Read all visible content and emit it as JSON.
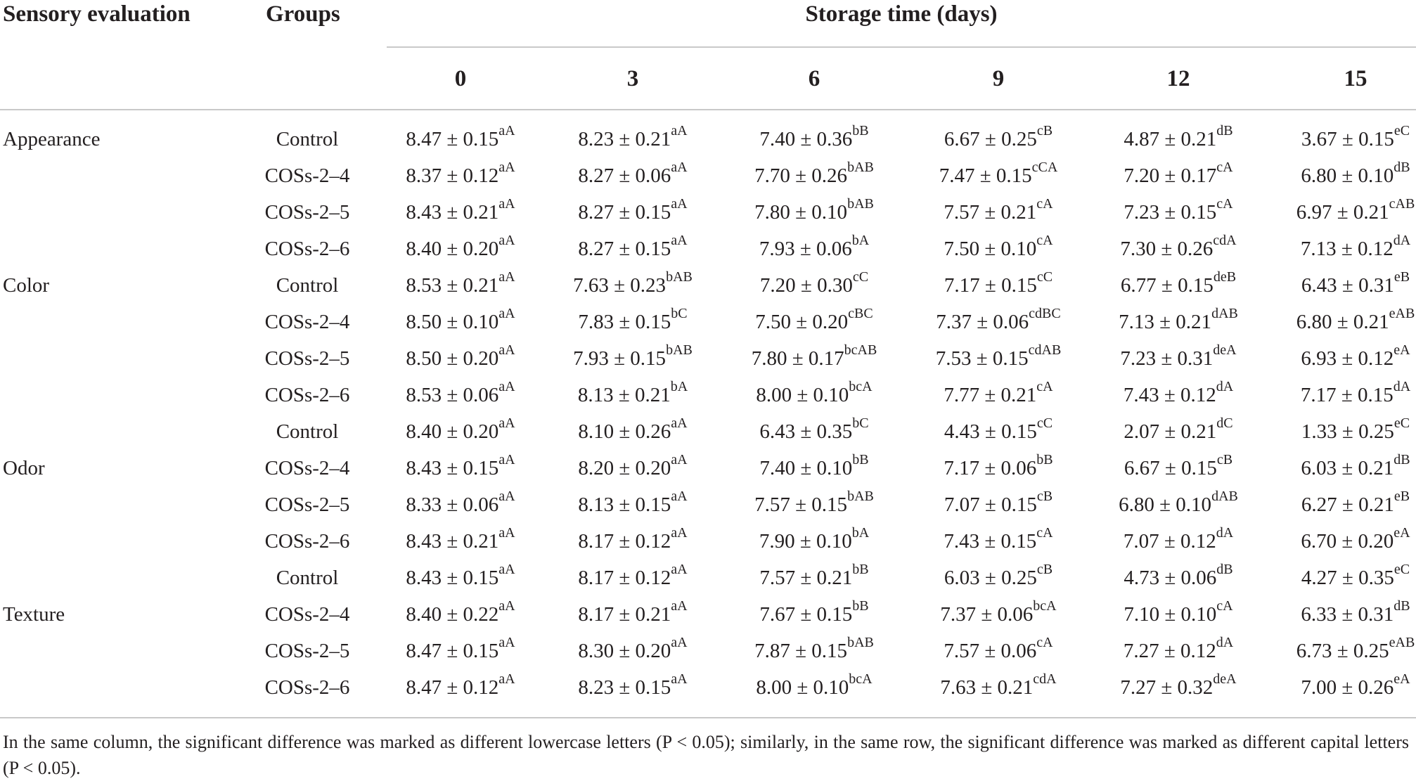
{
  "header": {
    "sensory": "Sensory evaluation",
    "groups": "Groups",
    "storage": "Storage time (days)",
    "days": [
      "0",
      "3",
      "6",
      "9",
      "12",
      "15"
    ]
  },
  "rows": [
    {
      "cat": "Appearance",
      "group": "Control",
      "cells": [
        [
          "8.47 ± 0.15",
          "aA"
        ],
        [
          "8.23 ± 0.21",
          "aA"
        ],
        [
          "7.40 ± 0.36",
          "bB"
        ],
        [
          "6.67 ± 0.25",
          "cB"
        ],
        [
          "4.87 ± 0.21",
          "dB"
        ],
        [
          "3.67 ± 0.15",
          "eC"
        ]
      ]
    },
    {
      "cat": "",
      "group": "COSs-2–4",
      "cells": [
        [
          "8.37 ± 0.12",
          "aA"
        ],
        [
          "8.27 ± 0.06",
          "aA"
        ],
        [
          "7.70 ± 0.26",
          "bAB"
        ],
        [
          "7.47 ± 0.15",
          "cCA"
        ],
        [
          "7.20 ± 0.17",
          "cA"
        ],
        [
          "6.80 ± 0.10",
          "dB"
        ]
      ]
    },
    {
      "cat": "",
      "group": "COSs-2–5",
      "cells": [
        [
          "8.43 ± 0.21",
          "aA"
        ],
        [
          "8.27 ± 0.15",
          "aA"
        ],
        [
          "7.80 ± 0.10",
          "bAB"
        ],
        [
          "7.57 ± 0.21",
          "cA"
        ],
        [
          "7.23 ± 0.15",
          "cA"
        ],
        [
          "6.97 ± 0.21",
          "cAB"
        ]
      ]
    },
    {
      "cat": "",
      "group": "COSs-2–6",
      "cells": [
        [
          "8.40 ± 0.20",
          "aA"
        ],
        [
          "8.27 ± 0.15",
          "aA"
        ],
        [
          "7.93 ± 0.06",
          "bA"
        ],
        [
          "7.50 ± 0.10",
          "cA"
        ],
        [
          "7.30 ± 0.26",
          "cdA"
        ],
        [
          "7.13 ± 0.12",
          "dA"
        ]
      ]
    },
    {
      "cat": "Color",
      "group": "Control",
      "cells": [
        [
          "8.53 ± 0.21",
          "aA"
        ],
        [
          "7.63 ± 0.23",
          "bAB"
        ],
        [
          "7.20 ± 0.30",
          "cC"
        ],
        [
          "7.17 ± 0.15",
          "cC"
        ],
        [
          "6.77 ± 0.15",
          "deB"
        ],
        [
          "6.43 ± 0.31",
          "eB"
        ]
      ]
    },
    {
      "cat": "",
      "group": "COSs-2–4",
      "cells": [
        [
          "8.50 ± 0.10",
          "aA"
        ],
        [
          "7.83 ± 0.15",
          "bC"
        ],
        [
          "7.50 ± 0.20",
          "cBC"
        ],
        [
          "7.37 ± 0.06",
          "cdBC"
        ],
        [
          "7.13 ± 0.21",
          "dAB"
        ],
        [
          "6.80 ± 0.21",
          "eAB"
        ]
      ]
    },
    {
      "cat": "",
      "group": "COSs-2–5",
      "cells": [
        [
          "8.50 ± 0.20",
          "aA"
        ],
        [
          "7.93 ± 0.15",
          "bAB"
        ],
        [
          "7.80 ± 0.17",
          "bcAB"
        ],
        [
          "7.53 ± 0.15",
          "cdAB"
        ],
        [
          "7.23 ± 0.31",
          "deA"
        ],
        [
          "6.93 ± 0.12",
          "eA"
        ]
      ]
    },
    {
      "cat": "",
      "group": "COSs-2–6",
      "cells": [
        [
          "8.53 ± 0.06",
          "aA"
        ],
        [
          "8.13 ± 0.21",
          "bA"
        ],
        [
          "8.00 ± 0.10",
          "bcA"
        ],
        [
          "7.77 ± 0.21",
          "cA"
        ],
        [
          "7.43 ± 0.12",
          "dA"
        ],
        [
          "7.17 ± 0.15",
          "dA"
        ]
      ]
    },
    {
      "cat": "",
      "group": "Control",
      "cells": [
        [
          "8.40 ± 0.20",
          "aA"
        ],
        [
          "8.10 ± 0.26",
          "aA"
        ],
        [
          "6.43 ± 0.35",
          "bC"
        ],
        [
          "4.43 ± 0.15",
          "cC"
        ],
        [
          "2.07 ± 0.21",
          "dC"
        ],
        [
          "1.33 ± 0.25",
          "eC"
        ]
      ]
    },
    {
      "cat": "Odor",
      "group": "COSs-2–4",
      "cells": [
        [
          "8.43 ± 0.15",
          "aA"
        ],
        [
          "8.20 ± 0.20",
          "aA"
        ],
        [
          "7.40 ± 0.10",
          "bB"
        ],
        [
          "7.17 ± 0.06",
          "bB"
        ],
        [
          "6.67 ± 0.15",
          "cB"
        ],
        [
          "6.03 ± 0.21",
          "dB"
        ]
      ]
    },
    {
      "cat": "",
      "group": "COSs-2–5",
      "cells": [
        [
          "8.33 ± 0.06",
          "aA"
        ],
        [
          "8.13 ± 0.15",
          "aA"
        ],
        [
          "7.57 ± 0.15",
          "bAB"
        ],
        [
          "7.07 ± 0.15",
          "cB"
        ],
        [
          "6.80 ± 0.10",
          "dAB"
        ],
        [
          "6.27 ± 0.21",
          "eB"
        ]
      ]
    },
    {
      "cat": "",
      "group": "COSs-2–6",
      "cells": [
        [
          "8.43 ± 0.21",
          "aA"
        ],
        [
          "8.17 ± 0.12",
          "aA"
        ],
        [
          "7.90 ± 0.10",
          "bA"
        ],
        [
          "7.43 ± 0.15",
          "cA"
        ],
        [
          "7.07 ± 0.12",
          "dA"
        ],
        [
          "6.70 ± 0.20",
          "eA"
        ]
      ]
    },
    {
      "cat": "",
      "group": "Control",
      "cells": [
        [
          "8.43 ± 0.15",
          "aA"
        ],
        [
          "8.17 ± 0.12",
          "aA"
        ],
        [
          "7.57 ± 0.21",
          "bB"
        ],
        [
          "6.03 ± 0.25",
          "cB"
        ],
        [
          "4.73 ± 0.06",
          "dB"
        ],
        [
          "4.27 ± 0.35",
          "eC"
        ]
      ]
    },
    {
      "cat": "Texture",
      "group": "COSs-2–4",
      "cells": [
        [
          "8.40 ± 0.22",
          "aA"
        ],
        [
          "8.17 ± 0.21",
          "aA"
        ],
        [
          "7.67 ± 0.15",
          "bB"
        ],
        [
          "7.37 ± 0.06",
          "bcA"
        ],
        [
          "7.10 ± 0.10",
          "cA"
        ],
        [
          "6.33 ± 0.31",
          "dB"
        ]
      ]
    },
    {
      "cat": "",
      "group": "COSs-2–5",
      "cells": [
        [
          "8.47 ± 0.15",
          "aA"
        ],
        [
          "8.30 ± 0.20",
          "aA"
        ],
        [
          "7.87 ± 0.15",
          "bAB"
        ],
        [
          "7.57 ± 0.06",
          "cA"
        ],
        [
          "7.27 ± 0.12",
          "dA"
        ],
        [
          "6.73 ± 0.25",
          "eAB"
        ]
      ]
    },
    {
      "cat": "",
      "group": "COSs-2–6",
      "cells": [
        [
          "8.47 ± 0.12",
          "aA"
        ],
        [
          "8.23 ± 0.15",
          "aA"
        ],
        [
          "8.00 ± 0.10",
          "bcA"
        ],
        [
          "7.63 ± 0.21",
          "cdA"
        ],
        [
          "7.27 ± 0.32",
          "deA"
        ],
        [
          "7.00 ± 0.26",
          "eA"
        ]
      ]
    }
  ],
  "footnote": "In the same column, the significant difference was marked as different lowercase letters (P < 0.05); similarly, in the same row, the significant difference was marked as different capital letters (P < 0.05)."
}
